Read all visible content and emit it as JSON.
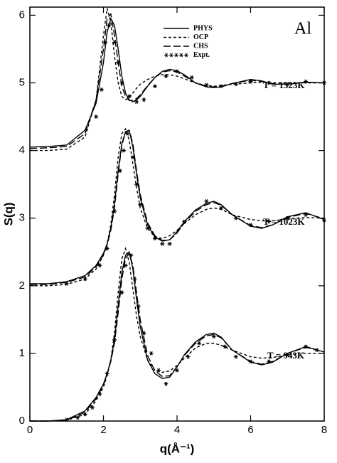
{
  "chart_data": {
    "type": "line",
    "label": "Al",
    "x_label": "q(Å⁻¹)",
    "y_label": "S(q)",
    "annotations": [
      "T = 1323K",
      "T = 1023K",
      "T = 943K"
    ],
    "x": [
      0,
      0.5,
      1.0,
      1.5,
      1.8,
      2.0,
      2.1,
      2.2,
      2.3,
      2.4,
      2.5,
      2.6,
      2.7,
      2.8,
      2.9,
      3.0,
      3.2,
      3.4,
      3.6,
      3.8,
      4.0,
      4.2,
      4.5,
      4.8,
      5.0,
      5.2,
      5.5,
      6.0,
      6.3,
      6.6,
      7.0,
      7.5,
      8.0
    ],
    "xlim": [
      0,
      8
    ],
    "xticks": [
      0,
      2,
      4,
      6,
      8
    ],
    "ylim": [
      0,
      6.12
    ],
    "yticks": [
      0,
      1,
      2,
      3,
      4,
      5,
      6
    ],
    "series": [
      {
        "name": "PHYS",
        "color": "#000000",
        "style": "solid",
        "values": [
          4.05,
          4.06,
          4.08,
          4.3,
          4.7,
          5.3,
          5.75,
          5.95,
          5.85,
          5.5,
          5.1,
          4.85,
          4.75,
          4.72,
          4.75,
          4.8,
          4.95,
          5.08,
          5.17,
          5.2,
          5.18,
          5.12,
          5.0,
          4.94,
          4.93,
          4.94,
          4.99,
          5.05,
          5.03,
          4.98,
          4.98,
          5.01,
          5.0
        ]
      },
      {
        "name": "OCP",
        "color": "#000000",
        "style": "dashed",
        "values": [
          4.0,
          4.0,
          4.02,
          4.2,
          4.75,
          5.7,
          6.1,
          5.9,
          5.4,
          5.0,
          4.8,
          4.75,
          4.78,
          4.85,
          4.92,
          4.98,
          5.05,
          5.1,
          5.12,
          5.12,
          5.1,
          5.06,
          5.0,
          4.96,
          4.95,
          4.96,
          4.98,
          5.0,
          5.01,
          5.0,
          5.0,
          5.0,
          5.0
        ]
      },
      {
        "name": "CHS",
        "color": "#000000",
        "style": "longdash",
        "values": [
          4.03,
          4.04,
          4.06,
          4.25,
          4.75,
          5.5,
          5.95,
          6.02,
          5.7,
          5.3,
          4.95,
          4.8,
          4.74,
          4.74,
          4.77,
          4.82,
          4.96,
          5.08,
          5.16,
          5.18,
          5.16,
          5.1,
          5.0,
          4.95,
          4.94,
          4.95,
          4.99,
          5.04,
          5.02,
          4.99,
          4.98,
          5.01,
          5.0
        ]
      },
      {
        "name": "Expt.",
        "color": "#000000",
        "style": "markers",
        "x": [
          1.8,
          1.95,
          2.05,
          2.15,
          2.3,
          2.4,
          2.5,
          2.7,
          2.9,
          3.1,
          3.4,
          3.7,
          4.0,
          4.4,
          4.8,
          5.2,
          5.6,
          6.0,
          6.5,
          7.0,
          7.5,
          8.0
        ],
        "values": [
          4.5,
          4.9,
          5.6,
          5.85,
          5.6,
          5.3,
          5.0,
          4.8,
          4.72,
          4.75,
          4.95,
          5.1,
          5.17,
          5.08,
          4.97,
          4.95,
          4.98,
          5.02,
          5.0,
          4.98,
          5.02,
          5.0
        ]
      },
      {
        "name": "PHYS",
        "color": "#000000",
        "style": "solid",
        "values": [
          2.03,
          2.03,
          2.06,
          2.15,
          2.3,
          2.48,
          2.62,
          2.85,
          3.2,
          3.7,
          4.1,
          4.28,
          4.3,
          4.05,
          3.65,
          3.3,
          2.9,
          2.72,
          2.66,
          2.68,
          2.8,
          2.95,
          3.12,
          3.22,
          3.25,
          3.2,
          3.05,
          2.88,
          2.85,
          2.9,
          3.02,
          3.08,
          2.98
        ]
      },
      {
        "name": "OCP",
        "color": "#000000",
        "style": "dashed",
        "values": [
          2.0,
          2.0,
          2.02,
          2.1,
          2.25,
          2.45,
          2.62,
          2.9,
          3.35,
          3.9,
          4.25,
          4.32,
          4.15,
          3.8,
          3.45,
          3.15,
          2.85,
          2.72,
          2.7,
          2.74,
          2.82,
          2.92,
          3.05,
          3.13,
          3.15,
          3.13,
          3.05,
          2.98,
          2.96,
          2.96,
          2.99,
          3.01,
          3.0
        ]
      },
      {
        "name": "CHS",
        "color": "#000000",
        "style": "longdash",
        "values": [
          2.02,
          2.02,
          2.05,
          2.13,
          2.28,
          2.46,
          2.6,
          2.82,
          3.15,
          3.65,
          4.08,
          4.27,
          4.3,
          4.1,
          3.7,
          3.35,
          2.93,
          2.74,
          2.67,
          2.68,
          2.78,
          2.93,
          3.1,
          3.2,
          3.23,
          3.19,
          3.05,
          2.89,
          2.86,
          2.9,
          3.01,
          3.07,
          2.99
        ]
      },
      {
        "name": "Expt.",
        "color": "#000000",
        "style": "markers",
        "x": [
          1.0,
          1.5,
          1.9,
          2.1,
          2.3,
          2.45,
          2.55,
          2.65,
          2.8,
          2.9,
          3.0,
          3.2,
          3.4,
          3.6,
          3.8,
          4.2,
          4.8,
          5.2,
          5.6,
          6.0,
          6.5,
          7.0,
          7.5,
          8.0
        ],
        "values": [
          2.03,
          2.1,
          2.3,
          2.55,
          3.1,
          3.7,
          4.0,
          4.25,
          3.9,
          3.5,
          3.2,
          2.85,
          2.7,
          2.62,
          2.62,
          2.95,
          3.25,
          3.15,
          3.0,
          2.9,
          2.95,
          3.0,
          3.05,
          2.97
        ]
      },
      {
        "name": "PHYS",
        "color": "#000000",
        "style": "solid",
        "values": [
          0,
          0,
          0.02,
          0.15,
          0.35,
          0.55,
          0.7,
          0.9,
          1.2,
          1.7,
          2.2,
          2.45,
          2.5,
          2.25,
          1.8,
          1.4,
          0.9,
          0.7,
          0.63,
          0.65,
          0.8,
          0.98,
          1.17,
          1.28,
          1.3,
          1.24,
          1.05,
          0.87,
          0.83,
          0.87,
          1.0,
          1.1,
          1.02
        ]
      },
      {
        "name": "OCP",
        "color": "#000000",
        "style": "dashed",
        "values": [
          0,
          0,
          0.01,
          0.1,
          0.3,
          0.5,
          0.68,
          0.9,
          1.3,
          1.9,
          2.4,
          2.55,
          2.35,
          1.95,
          1.55,
          1.25,
          0.9,
          0.75,
          0.72,
          0.74,
          0.82,
          0.93,
          1.08,
          1.15,
          1.15,
          1.12,
          1.05,
          0.95,
          0.93,
          0.94,
          0.98,
          1.0,
          1.0
        ]
      },
      {
        "name": "CHS",
        "color": "#000000",
        "style": "longdash",
        "values": [
          0,
          0,
          0.01,
          0.13,
          0.33,
          0.53,
          0.69,
          0.88,
          1.15,
          1.6,
          2.1,
          2.4,
          2.48,
          2.3,
          1.9,
          1.5,
          0.97,
          0.74,
          0.66,
          0.67,
          0.8,
          0.97,
          1.15,
          1.26,
          1.28,
          1.23,
          1.05,
          0.88,
          0.84,
          0.88,
          1.0,
          1.09,
          1.02
        ]
      },
      {
        "name": "Expt.",
        "color": "#000000",
        "style": "markers",
        "x": [
          1.0,
          1.3,
          1.5,
          1.7,
          1.9,
          2.1,
          2.3,
          2.5,
          2.6,
          2.75,
          2.85,
          2.95,
          3.1,
          3.3,
          3.5,
          3.7,
          4.0,
          4.3,
          4.6,
          5.0,
          5.3,
          5.6,
          6.0,
          6.5,
          7.0,
          7.5,
          7.8
        ],
        "values": [
          0.02,
          0.05,
          0.1,
          0.2,
          0.4,
          0.7,
          1.2,
          1.9,
          2.3,
          2.45,
          2.1,
          1.7,
          1.3,
          1.0,
          0.75,
          0.55,
          0.75,
          0.95,
          1.15,
          1.25,
          1.1,
          0.95,
          0.88,
          0.88,
          0.98,
          1.1,
          1.05
        ]
      }
    ]
  }
}
